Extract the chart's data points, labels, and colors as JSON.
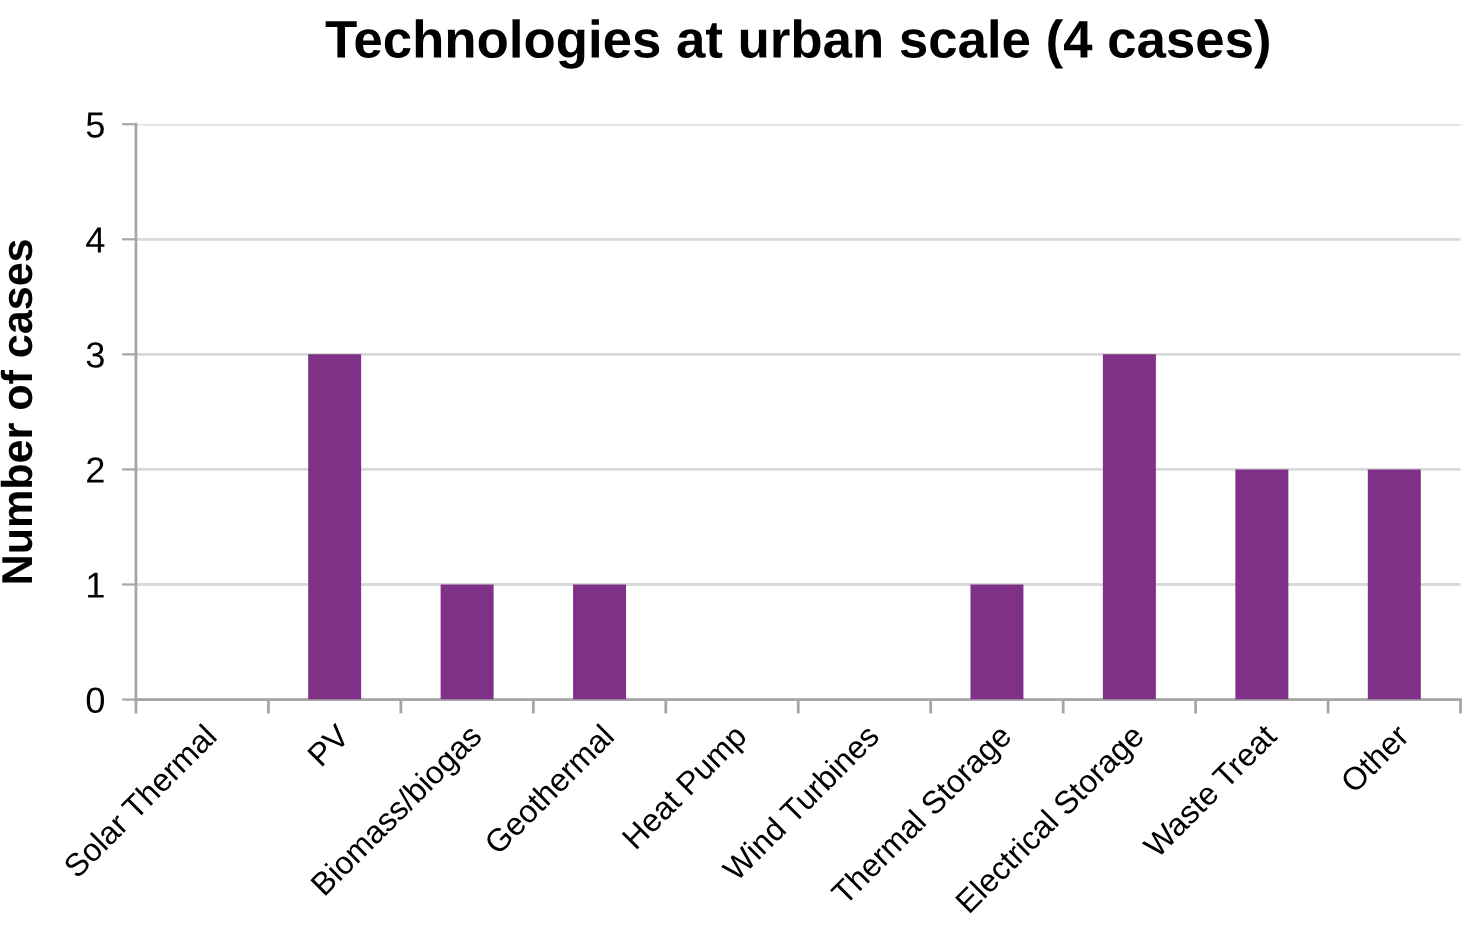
{
  "chart_data": {
    "type": "bar",
    "title": "Technologies at urban scale (4 cases)",
    "ylabel": "Number of cases",
    "categories": [
      "Solar Thermal",
      "PV",
      "Biomass/biogas",
      "Geothermal",
      "Heat Pump",
      "Wind Turbines",
      "Thermal Storage",
      "Electrical Storage",
      "Waste Treat",
      "Other"
    ],
    "values": [
      0,
      3,
      1,
      1,
      0,
      0,
      1,
      3,
      2,
      2
    ],
    "color": "#7f3087",
    "ylim": [
      0,
      5
    ],
    "yticks": [
      0,
      1,
      2,
      3,
      4,
      5
    ],
    "grid": "y",
    "legend": false
  }
}
